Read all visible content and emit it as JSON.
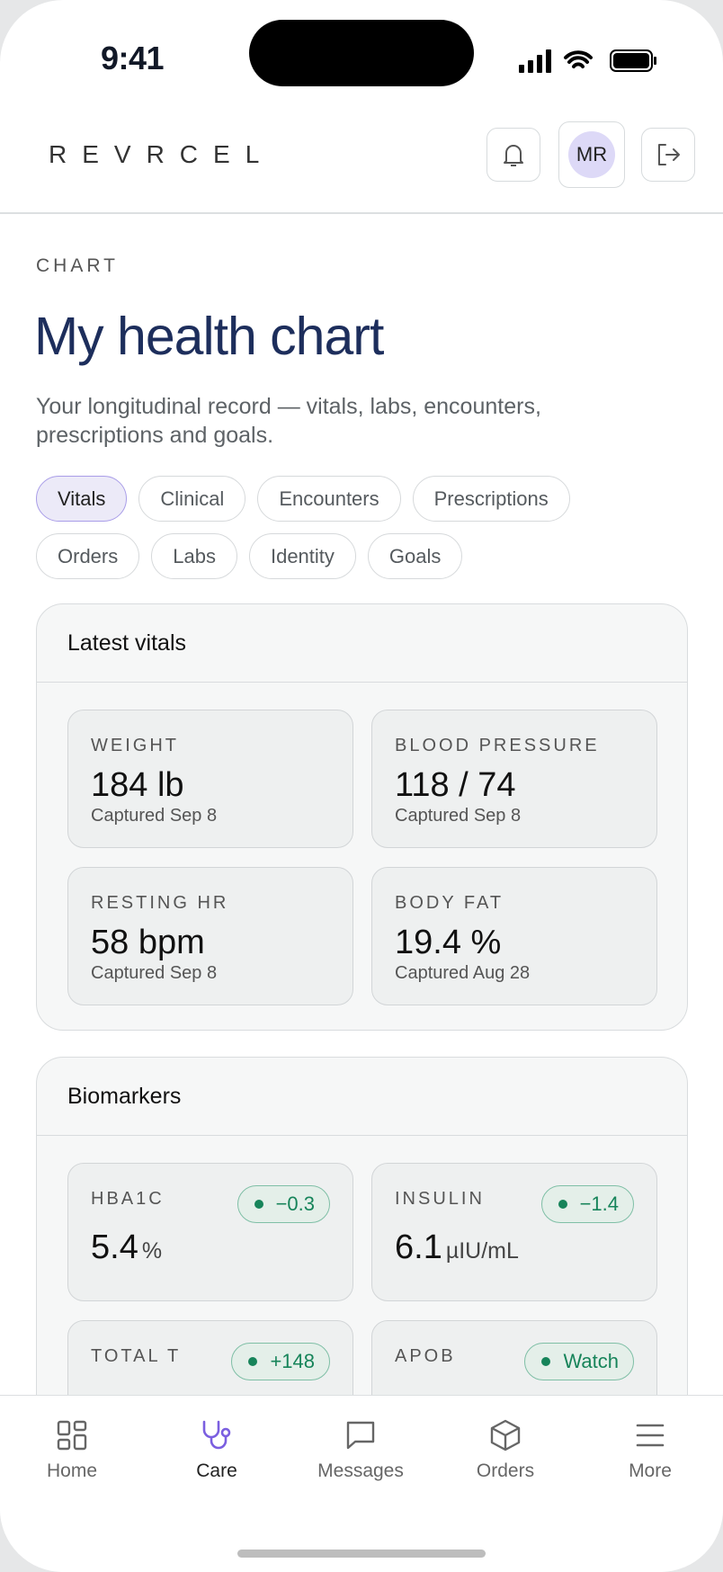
{
  "status_bar": {
    "time": "9:41"
  },
  "header": {
    "brand": "REVRCEL",
    "avatar": "MR"
  },
  "page": {
    "eyebrow": "CHART",
    "title": "My health chart",
    "subtitle": "Your longitudinal record — vitals, labs, encounters, prescriptions and goals."
  },
  "tabs": {
    "items": [
      "Vitals",
      "Clinical",
      "Encounters",
      "Prescriptions",
      "Orders",
      "Labs",
      "Identity",
      "Goals"
    ],
    "active": "Vitals"
  },
  "vitals": {
    "title": "Latest vitals",
    "tiles": [
      {
        "label": "WEIGHT",
        "value": "184 lb",
        "caption": "Captured Sep 8"
      },
      {
        "label": "BLOOD PRESSURE",
        "value": "118 / 74",
        "caption": "Captured Sep 8"
      },
      {
        "label": "RESTING HR",
        "value": "58 bpm",
        "caption": "Captured Sep 8"
      },
      {
        "label": "BODY FAT",
        "value": "19.4 %",
        "caption": "Captured Aug 28"
      }
    ]
  },
  "biomarkers": {
    "title": "Biomarkers",
    "tiles": [
      {
        "label": "HBA1C",
        "value": "5.4",
        "unit": "%",
        "badge": "−0.3"
      },
      {
        "label": "INSULIN",
        "value": "6.1",
        "unit": "µIU/mL",
        "badge": "−1.4"
      },
      {
        "label": "TOTAL T",
        "badge": "+148"
      },
      {
        "label": "APOB",
        "badge": "Watch"
      }
    ]
  },
  "nav": {
    "items": [
      "Home",
      "Care",
      "Messages",
      "Orders",
      "More"
    ],
    "active": "Care"
  }
}
